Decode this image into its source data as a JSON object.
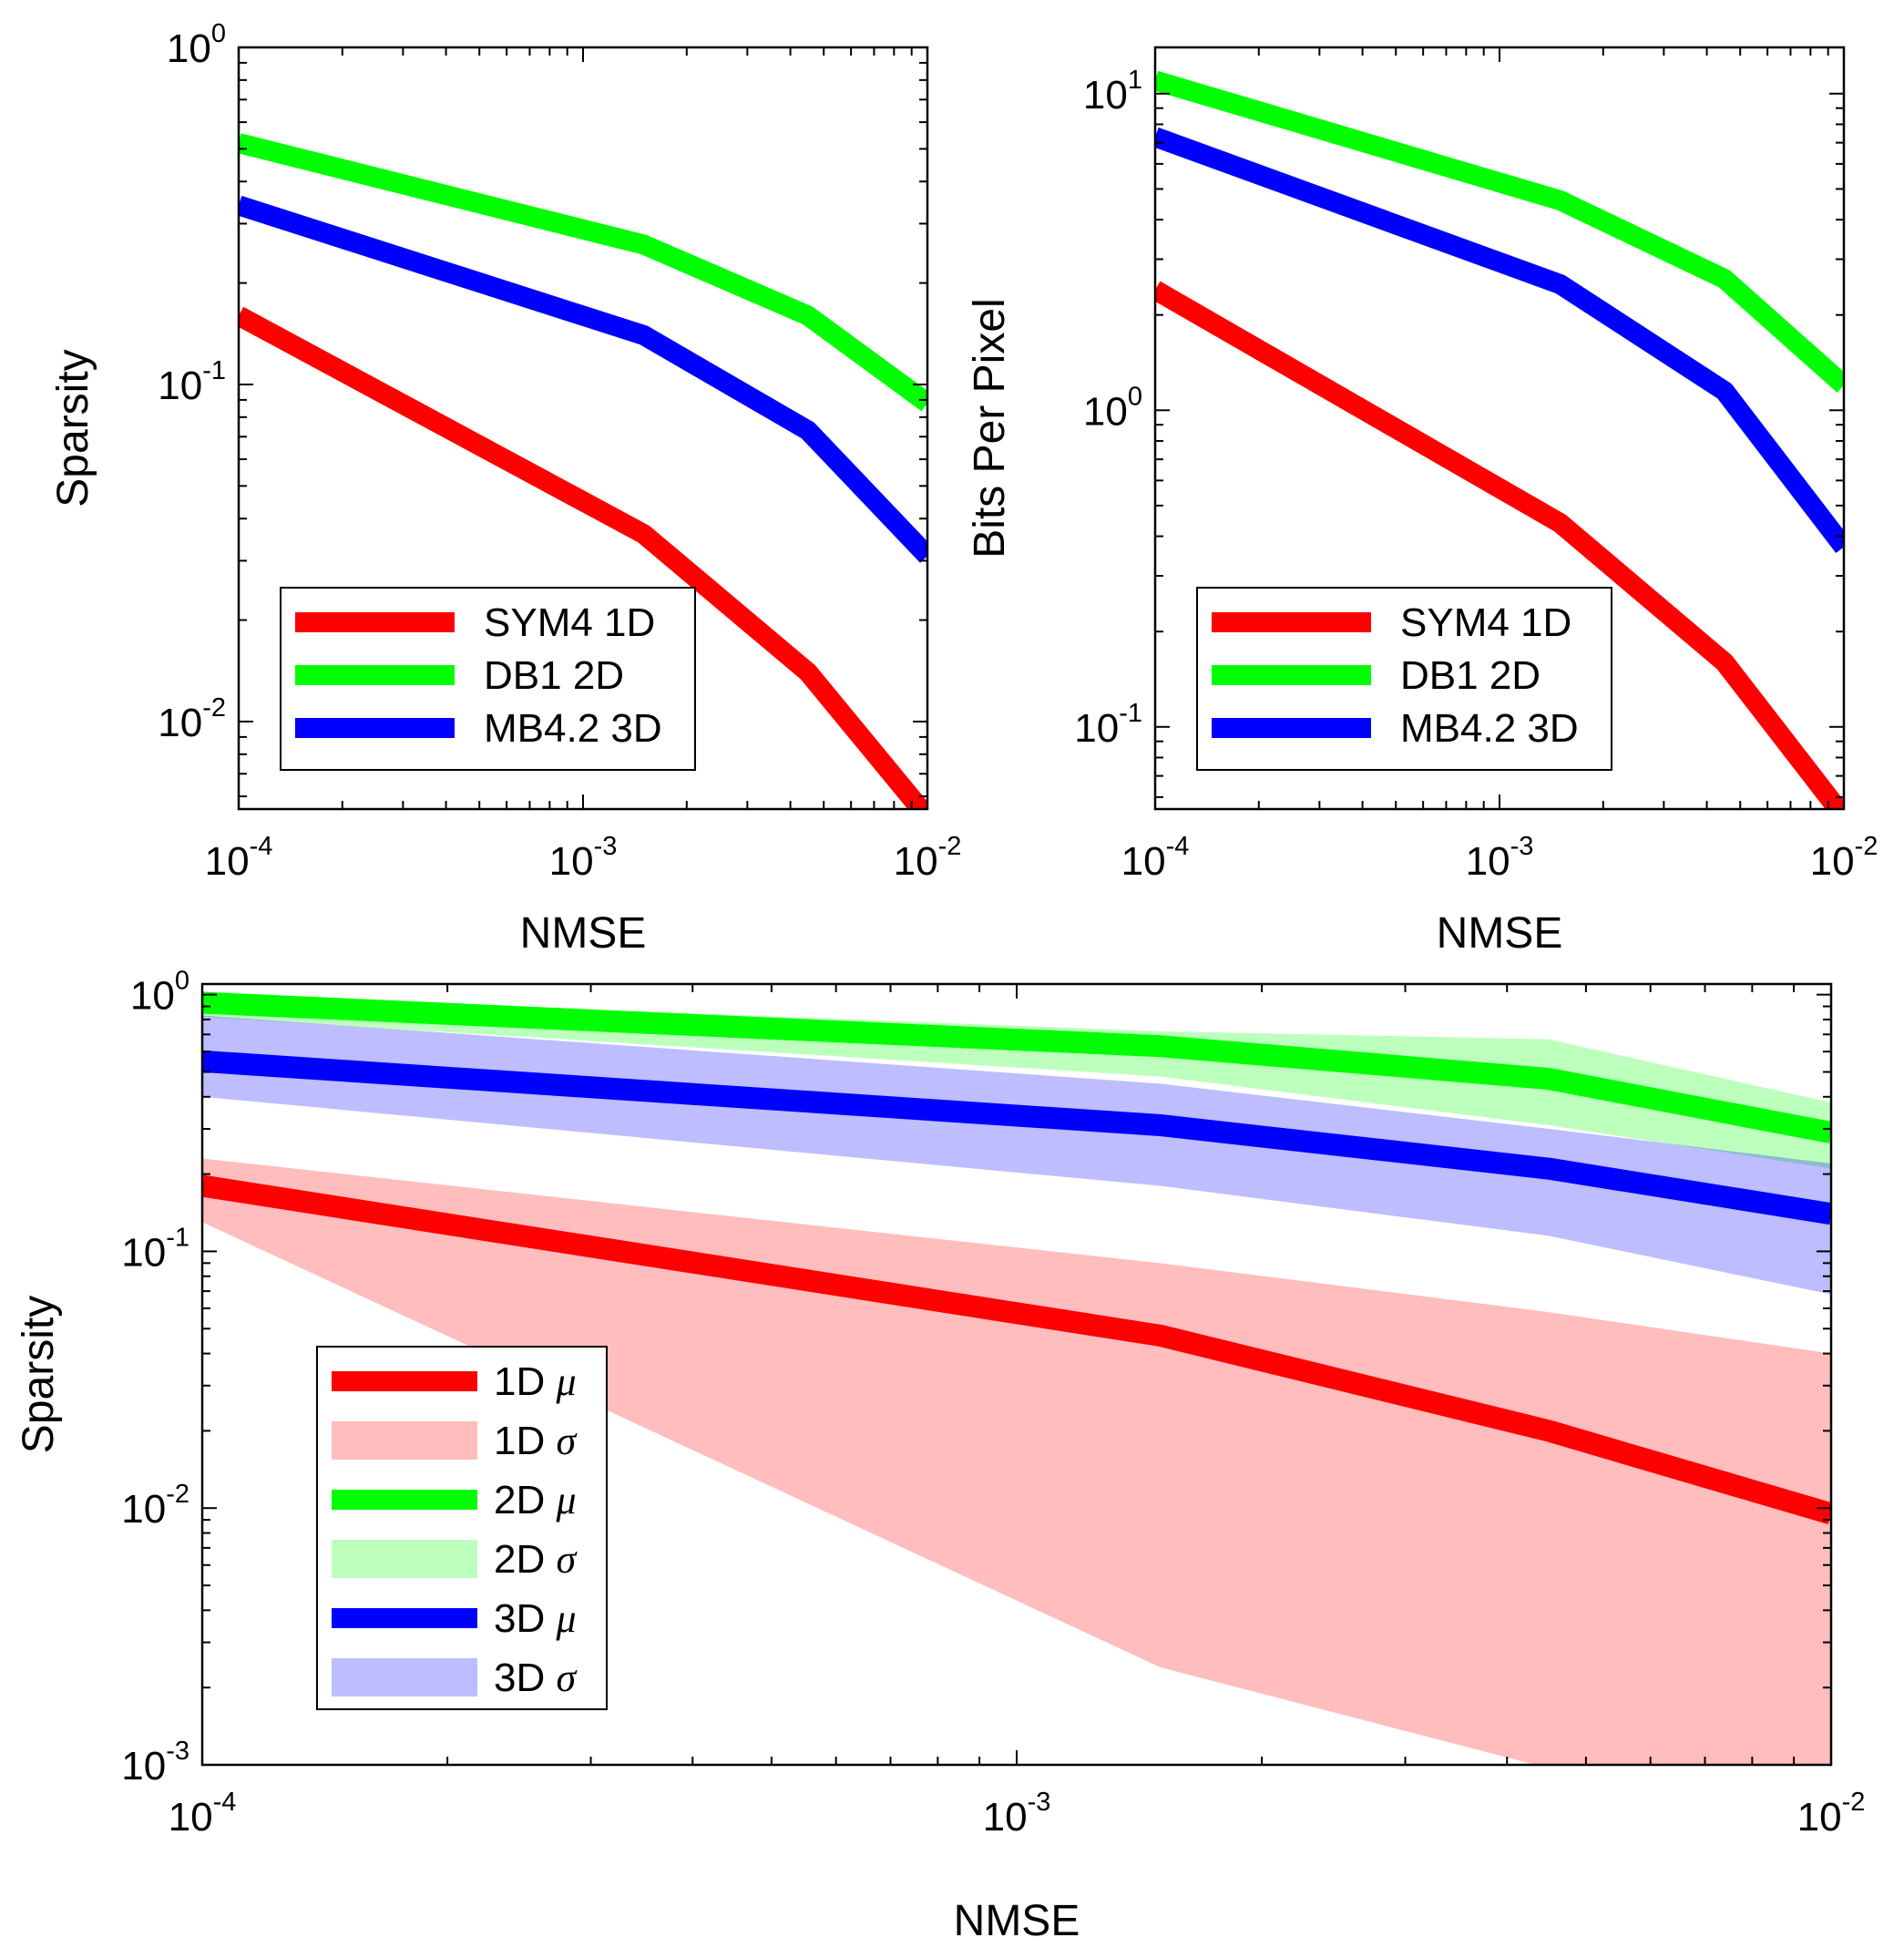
{
  "chart_data": [
    {
      "id": "sparsity-by-transform",
      "type": "line",
      "xscale": "log",
      "yscale": "log",
      "xlabel": "NMSE",
      "ylabel": "Sparsity",
      "xlim": [
        0.0001,
        0.01
      ],
      "ylim": [
        0.0055,
        1
      ],
      "x_ticks": [
        {
          "base": "10",
          "exp": "-4"
        },
        {
          "base": "10",
          "exp": "-3"
        },
        {
          "base": "10",
          "exp": "-2"
        }
      ],
      "y_ticks": [
        {
          "base": "10",
          "exp": "-2"
        },
        {
          "base": "10",
          "exp": "-1"
        },
        {
          "base": "10",
          "exp": "0"
        }
      ],
      "legend_position": "bottom-left",
      "series": [
        {
          "name": "SYM4 1D",
          "color": "#ff0000",
          "x": [
            0.0001,
            0.0015,
            0.0045,
            0.01
          ],
          "y": [
            0.16,
            0.036,
            0.014,
            0.0052
          ]
        },
        {
          "name": "DB1 2D",
          "color": "#00ff00",
          "x": [
            0.0001,
            0.0015,
            0.0045,
            0.01
          ],
          "y": [
            0.52,
            0.26,
            0.16,
            0.088
          ]
        },
        {
          "name": "MB4.2 3D",
          "color": "#0000ff",
          "x": [
            0.0001,
            0.0015,
            0.0045,
            0.01
          ],
          "y": [
            0.34,
            0.14,
            0.073,
            0.031
          ]
        }
      ]
    },
    {
      "id": "bits-per-pixel",
      "type": "line",
      "xscale": "log",
      "yscale": "log",
      "xlabel": "NMSE",
      "ylabel": "Bits Per Pixel",
      "xlim": [
        0.0001,
        0.01
      ],
      "ylim": [
        0.055,
        14
      ],
      "x_ticks": [
        {
          "base": "10",
          "exp": "-4"
        },
        {
          "base": "10",
          "exp": "-3"
        },
        {
          "base": "10",
          "exp": "-2"
        }
      ],
      "y_ticks": [
        {
          "base": "10",
          "exp": "-1"
        },
        {
          "base": "10",
          "exp": "0"
        },
        {
          "base": "10",
          "exp": "1"
        }
      ],
      "legend_position": "bottom-left",
      "series": [
        {
          "name": "SYM4 1D",
          "color": "#ff0000",
          "x": [
            0.0001,
            0.0015,
            0.0045,
            0.01
          ],
          "y": [
            2.4,
            0.44,
            0.16,
            0.052
          ]
        },
        {
          "name": "DB1 2D",
          "color": "#00ff00",
          "x": [
            0.0001,
            0.0015,
            0.0045,
            0.01
          ],
          "y": [
            11,
            4.6,
            2.6,
            1.2
          ]
        },
        {
          "name": "MB4.2 3D",
          "color": "#0000ff",
          "x": [
            0.0001,
            0.0015,
            0.0045,
            0.01
          ],
          "y": [
            7.3,
            2.5,
            1.15,
            0.37
          ]
        }
      ]
    },
    {
      "id": "sparsity-mean-std",
      "type": "area",
      "xscale": "log",
      "yscale": "log",
      "xlabel": "NMSE",
      "ylabel": "Sparsity",
      "xlim": [
        0.0001,
        0.01
      ],
      "ylim": [
        0.001,
        1.1
      ],
      "x_ticks": [
        {
          "base": "10",
          "exp": "-4"
        },
        {
          "base": "10",
          "exp": "-3"
        },
        {
          "base": "10",
          "exp": "-2"
        }
      ],
      "y_ticks": [
        {
          "base": "10",
          "exp": "-3"
        },
        {
          "base": "10",
          "exp": "-2"
        },
        {
          "base": "10",
          "exp": "-1"
        },
        {
          "base": "10",
          "exp": "0"
        }
      ],
      "legend_position": "bottom-left",
      "bands": [
        {
          "name": "1D",
          "sym": "σ",
          "color": "#ff0000",
          "opacity": 0.26,
          "x": [
            0.0001,
            0.0015,
            0.0045,
            0.01
          ],
          "upper": [
            0.23,
            0.09,
            0.058,
            0.04
          ],
          "lower": [
            0.13,
            0.0024,
            0.00097,
            0.0008
          ]
        },
        {
          "name": "2D",
          "sym": "σ",
          "color": "#00ff00",
          "opacity": 0.26,
          "x": [
            0.0001,
            0.0015,
            0.0045,
            0.01
          ],
          "upper": [
            1.0,
            0.72,
            0.67,
            0.38
          ],
          "lower": [
            0.82,
            0.48,
            0.31,
            0.21
          ]
        },
        {
          "name": "3D",
          "sym": "σ",
          "color": "#0000ff",
          "opacity": 0.26,
          "x": [
            0.0001,
            0.0015,
            0.0045,
            0.01
          ],
          "upper": [
            0.83,
            0.45,
            0.3,
            0.22
          ],
          "lower": [
            0.4,
            0.18,
            0.115,
            0.068
          ]
        }
      ],
      "series": [
        {
          "name": "1D",
          "sym": "μ",
          "color": "#ff0000",
          "x": [
            0.0001,
            0.0015,
            0.0045,
            0.01
          ],
          "y": [
            0.18,
            0.047,
            0.02,
            0.0095
          ]
        },
        {
          "name": "2D",
          "sym": "μ",
          "color": "#00ff00",
          "x": [
            0.0001,
            0.0015,
            0.0045,
            0.01
          ],
          "y": [
            0.93,
            0.63,
            0.47,
            0.29
          ]
        },
        {
          "name": "3D",
          "sym": "μ",
          "color": "#0000ff",
          "x": [
            0.0001,
            0.0015,
            0.0045,
            0.01
          ],
          "y": [
            0.55,
            0.31,
            0.21,
            0.14
          ]
        }
      ],
      "legend_order": [
        {
          "kind": "line",
          "ref": 0
        },
        {
          "kind": "band",
          "ref": 0
        },
        {
          "kind": "line",
          "ref": 1
        },
        {
          "kind": "band",
          "ref": 1
        },
        {
          "kind": "line",
          "ref": 2
        },
        {
          "kind": "band",
          "ref": 2
        }
      ]
    }
  ]
}
